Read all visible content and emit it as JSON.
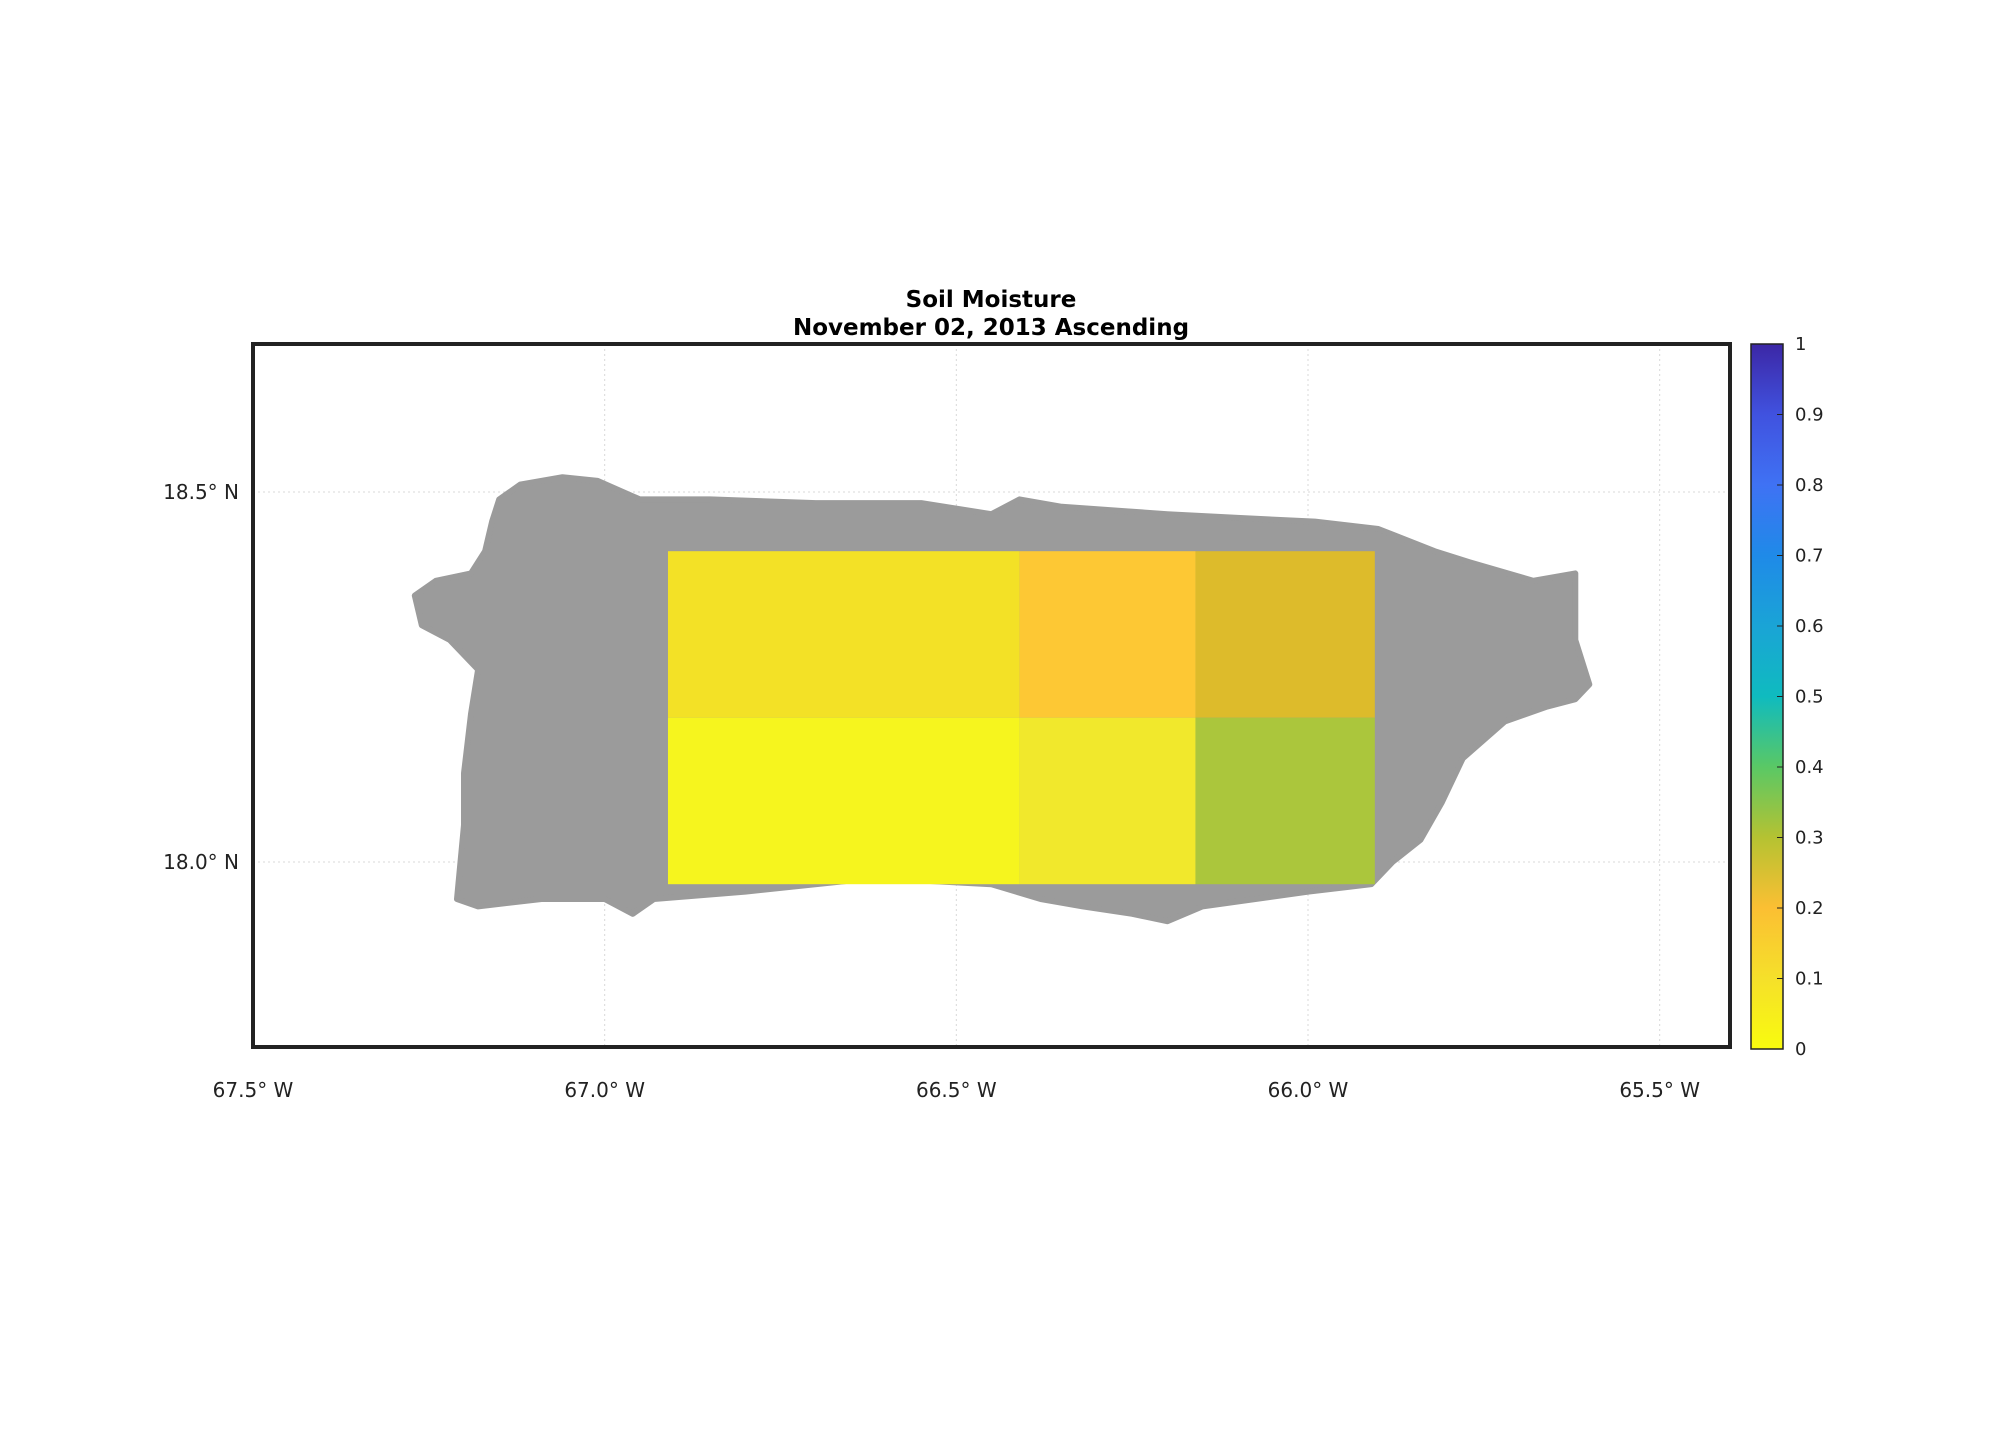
{
  "title": "Soil Moisture",
  "subtitle": "November 02, 2013 Ascending",
  "colors": {
    "land": "#9b9b9b",
    "frame": "#222222",
    "grid": "#d9d9d9"
  },
  "chart_data": {
    "type": "heatmap",
    "title": "Soil Moisture",
    "subtitle": "November 02, 2013 Ascending",
    "xlim": [
      -67.5,
      -65.4
    ],
    "ylim": [
      17.75,
      18.7
    ],
    "x_ticks": [
      {
        "value": -67.5,
        "label": "67.5° W"
      },
      {
        "value": -67.0,
        "label": "67.0° W"
      },
      {
        "value": -66.5,
        "label": "66.5° W"
      },
      {
        "value": -66.0,
        "label": "66.0° W"
      },
      {
        "value": -65.5,
        "label": "65.5° W"
      }
    ],
    "y_ticks": [
      {
        "value": 18.5,
        "label": "18.5° N"
      },
      {
        "value": 18.0,
        "label": "18.0° N"
      }
    ],
    "grid": true,
    "colorbar": {
      "range": [
        0,
        1
      ],
      "position": "right",
      "ticks": [
        "0",
        "0.1",
        "0.2",
        "0.3",
        "0.4",
        "0.5",
        "0.6",
        "0.7",
        "0.8",
        "0.9",
        "1"
      ],
      "stops": [
        {
          "v": 0.0,
          "c": "#f9fb0e"
        },
        {
          "v": 0.1,
          "c": "#f5e02a"
        },
        {
          "v": 0.2,
          "c": "#fbbf33"
        },
        {
          "v": 0.3,
          "c": "#b5c232"
        },
        {
          "v": 0.4,
          "c": "#5ac865"
        },
        {
          "v": 0.5,
          "c": "#0fbbbf"
        },
        {
          "v": 0.6,
          "c": "#1aa4d6"
        },
        {
          "v": 0.7,
          "c": "#1f8ae8"
        },
        {
          "v": 0.8,
          "c": "#3f72f4"
        },
        {
          "v": 0.9,
          "c": "#4052df"
        },
        {
          "v": 1.0,
          "c": "#3c27a6"
        }
      ]
    },
    "cells": [
      {
        "lon0": -66.91,
        "lon1": -66.41,
        "lat0": 18.195,
        "lat1": 18.42,
        "value": 0.06,
        "color": "#f3e126"
      },
      {
        "lon0": -66.41,
        "lon1": -66.16,
        "lat0": 18.195,
        "lat1": 18.42,
        "value": 0.17,
        "color": "#fdc834"
      },
      {
        "lon0": -66.16,
        "lon1": -65.905,
        "lat0": 18.195,
        "lat1": 18.42,
        "value": 0.24,
        "color": "#ddbb2b"
      },
      {
        "lon0": -66.91,
        "lon1": -66.41,
        "lat0": 17.97,
        "lat1": 18.195,
        "value": 0.01,
        "color": "#f6f51e"
      },
      {
        "lon0": -66.41,
        "lon1": -66.16,
        "lat0": 17.97,
        "lat1": 18.195,
        "value": 0.04,
        "color": "#f1e82c"
      },
      {
        "lon0": -66.16,
        "lon1": -65.905,
        "lat0": 17.97,
        "lat1": 18.195,
        "value": 0.32,
        "color": "#abc63c"
      }
    ],
    "land_outline": [
      [
        -67.27,
        18.36
      ],
      [
        -67.24,
        18.38
      ],
      [
        -67.19,
        18.39
      ],
      [
        -67.17,
        18.42
      ],
      [
        -67.16,
        18.46
      ],
      [
        -67.15,
        18.49
      ],
      [
        -67.12,
        18.51
      ],
      [
        -67.06,
        18.52
      ],
      [
        -67.01,
        18.515
      ],
      [
        -66.95,
        18.49
      ],
      [
        -66.85,
        18.49
      ],
      [
        -66.7,
        18.485
      ],
      [
        -66.55,
        18.485
      ],
      [
        -66.45,
        18.47
      ],
      [
        -66.41,
        18.49
      ],
      [
        -66.35,
        18.48
      ],
      [
        -66.2,
        18.47
      ],
      [
        -66.1,
        18.465
      ],
      [
        -65.99,
        18.46
      ],
      [
        -65.9,
        18.45
      ],
      [
        -65.82,
        18.42
      ],
      [
        -65.77,
        18.405
      ],
      [
        -65.68,
        18.38
      ],
      [
        -65.62,
        18.39
      ],
      [
        -65.62,
        18.3
      ],
      [
        -65.6,
        18.24
      ],
      [
        -65.62,
        18.22
      ],
      [
        -65.66,
        18.21
      ],
      [
        -65.72,
        18.19
      ],
      [
        -65.78,
        18.14
      ],
      [
        -65.81,
        18.08
      ],
      [
        -65.84,
        18.03
      ],
      [
        -65.88,
        18.0
      ],
      [
        -65.91,
        17.97
      ],
      [
        -66.0,
        17.96
      ],
      [
        -66.15,
        17.94
      ],
      [
        -66.2,
        17.92
      ],
      [
        -66.25,
        17.93
      ],
      [
        -66.32,
        17.94
      ],
      [
        -66.38,
        17.95
      ],
      [
        -66.45,
        17.97
      ],
      [
        -66.55,
        17.975
      ],
      [
        -66.65,
        17.975
      ],
      [
        -66.8,
        17.96
      ],
      [
        -66.93,
        17.95
      ],
      [
        -66.96,
        17.93
      ],
      [
        -67.0,
        17.95
      ],
      [
        -67.09,
        17.95
      ],
      [
        -67.18,
        17.94
      ],
      [
        -67.21,
        17.95
      ],
      [
        -67.2,
        18.05
      ],
      [
        -67.2,
        18.12
      ],
      [
        -67.19,
        18.2
      ],
      [
        -67.18,
        18.26
      ],
      [
        -67.22,
        18.3
      ],
      [
        -67.26,
        18.32
      ]
    ]
  }
}
